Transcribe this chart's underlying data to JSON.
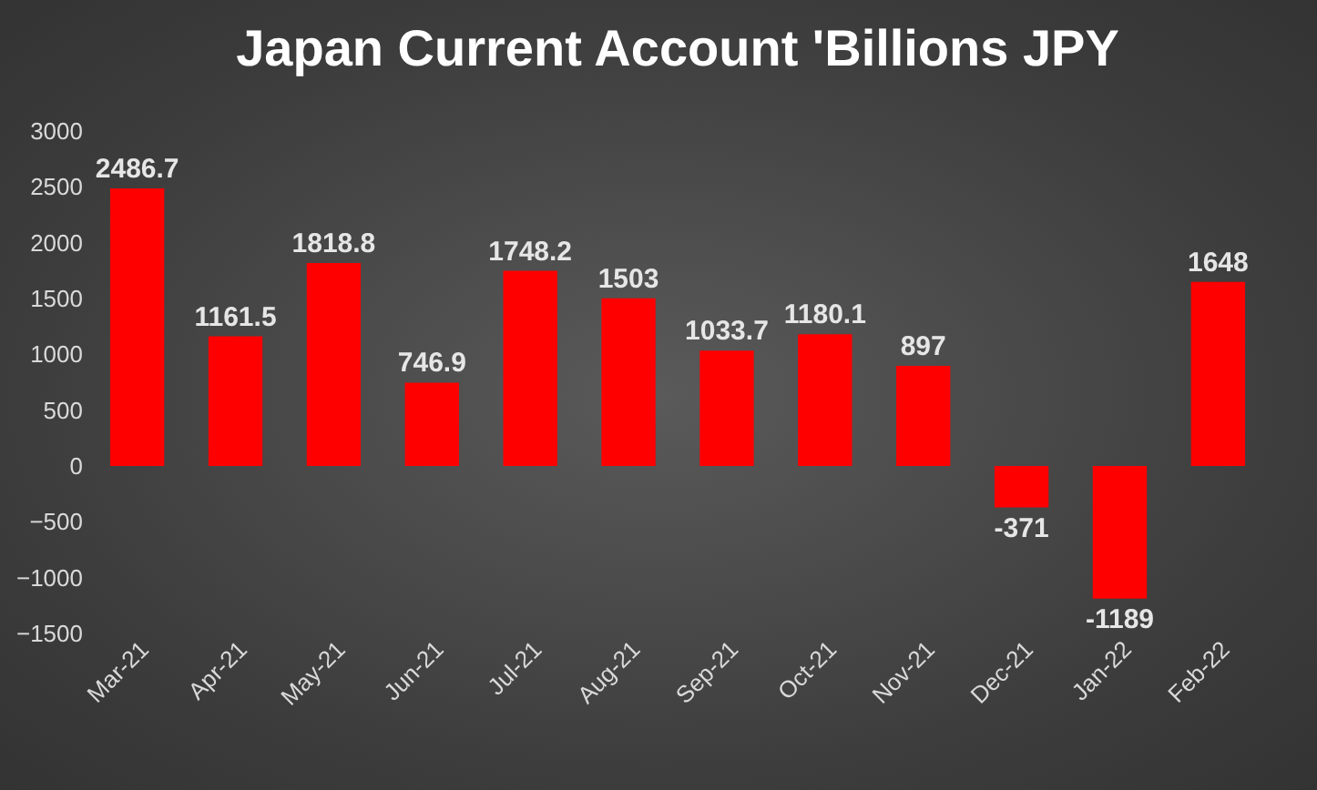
{
  "chart_data": {
    "type": "bar",
    "title": "Japan Current Account 'Billions JPY",
    "categories": [
      "Mar-21",
      "Apr-21",
      "May-21",
      "Jun-21",
      "Jul-21",
      "Aug-21",
      "Sep-21",
      "Oct-21",
      "Nov-21",
      "Dec-21",
      "Jan-22",
      "Feb-22"
    ],
    "values": [
      2486.7,
      1161.5,
      1818.8,
      746.9,
      1748.2,
      1503,
      1033.7,
      1180.1,
      897,
      -371,
      -1189,
      1648
    ],
    "color": "#ff0000",
    "ylim": [
      -1500,
      3000
    ],
    "yticks": [
      -1500,
      -1000,
      -500,
      0,
      500,
      1000,
      1500,
      2000,
      2500,
      3000
    ],
    "grid": false,
    "data_labels": true
  }
}
